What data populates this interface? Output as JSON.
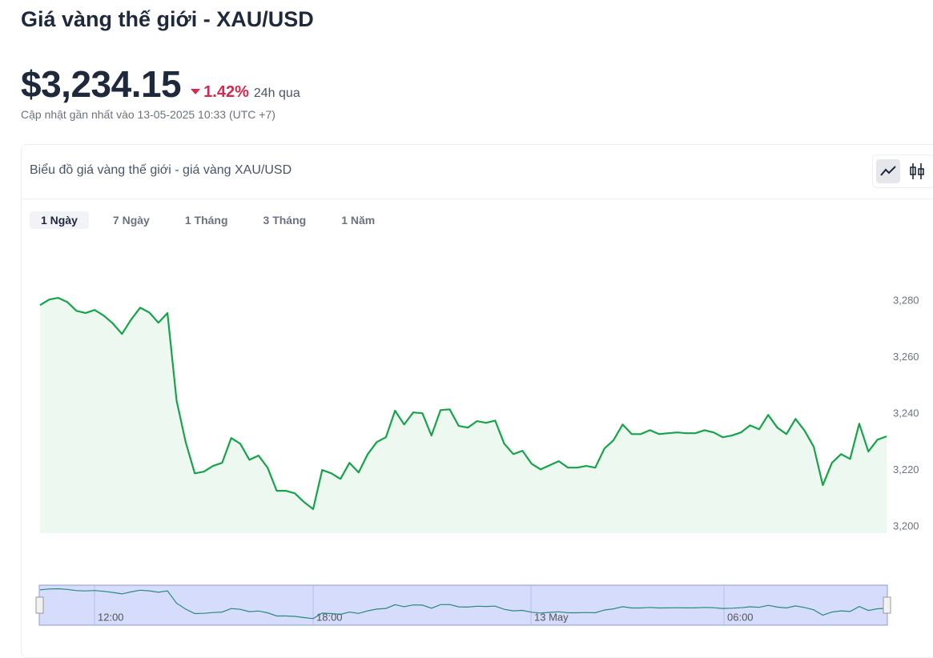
{
  "header": {
    "title": "Giá vàng thế giới - XAU/USD",
    "price": "$3,234.15",
    "change": "1.42%",
    "period": "24h qua",
    "updated": "Cập nhật gần nhất vào 13-05-2025 10:33 (UTC +7)"
  },
  "chart_card": {
    "title": "Biểu đồ giá vàng thế giới - giá vàng XAU/USD",
    "ranges": [
      "1 Ngày",
      "7 Ngày",
      "1 Tháng",
      "3 Tháng",
      "1 Năm"
    ],
    "selected_range": 0
  },
  "chart_data": {
    "type": "line",
    "color": "#16a34a",
    "values": [
      3278.3,
      3280.3,
      3280.9,
      3279.4,
      3276.3,
      3275.5,
      3276.6,
      3274.6,
      3271.8,
      3268.1,
      3273.2,
      3277.4,
      3275.7,
      3272.1,
      3275.5,
      3244.5,
      3229.8,
      3218.7,
      3219.3,
      3221.3,
      3222.4,
      3231.2,
      3229.2,
      3223.5,
      3225.0,
      3220.7,
      3212.5,
      3212.5,
      3211.6,
      3208.5,
      3206.0,
      3219.9,
      3218.7,
      3216.7,
      3222.4,
      3219.0,
      3225.5,
      3229.8,
      3231.5,
      3240.9,
      3236.0,
      3240.3,
      3240.0,
      3232.1,
      3241.1,
      3241.4,
      3235.5,
      3234.9,
      3237.2,
      3236.6,
      3237.4,
      3229.2,
      3225.5,
      3226.7,
      3222.1,
      3220.1,
      3221.6,
      3223.0,
      3220.7,
      3220.7,
      3221.3,
      3220.7,
      3227.5,
      3230.4,
      3236.0,
      3232.6,
      3232.6,
      3234.0,
      3232.6,
      3232.9,
      3233.2,
      3232.9,
      3232.9,
      3234.0,
      3233.2,
      3231.5,
      3232.1,
      3233.2,
      3235.7,
      3234.3,
      3239.4,
      3234.9,
      3232.6,
      3238.0,
      3233.8,
      3228.1,
      3214.5,
      3222.4,
      3225.5,
      3223.8,
      3236.3,
      3226.4,
      3230.6,
      3231.8
    ],
    "ylim": [
      3197.5,
      3290
    ],
    "yticks": [
      {
        "value": 3200,
        "label": "3,200"
      },
      {
        "value": 3220,
        "label": "3,220"
      },
      {
        "value": 3240,
        "label": "3,240"
      },
      {
        "value": 3260,
        "label": "3,260"
      },
      {
        "value": 3280,
        "label": "3,280"
      }
    ],
    "navigator_labels": [
      "12:00",
      "18:00",
      "13 May",
      "06:00"
    ]
  }
}
